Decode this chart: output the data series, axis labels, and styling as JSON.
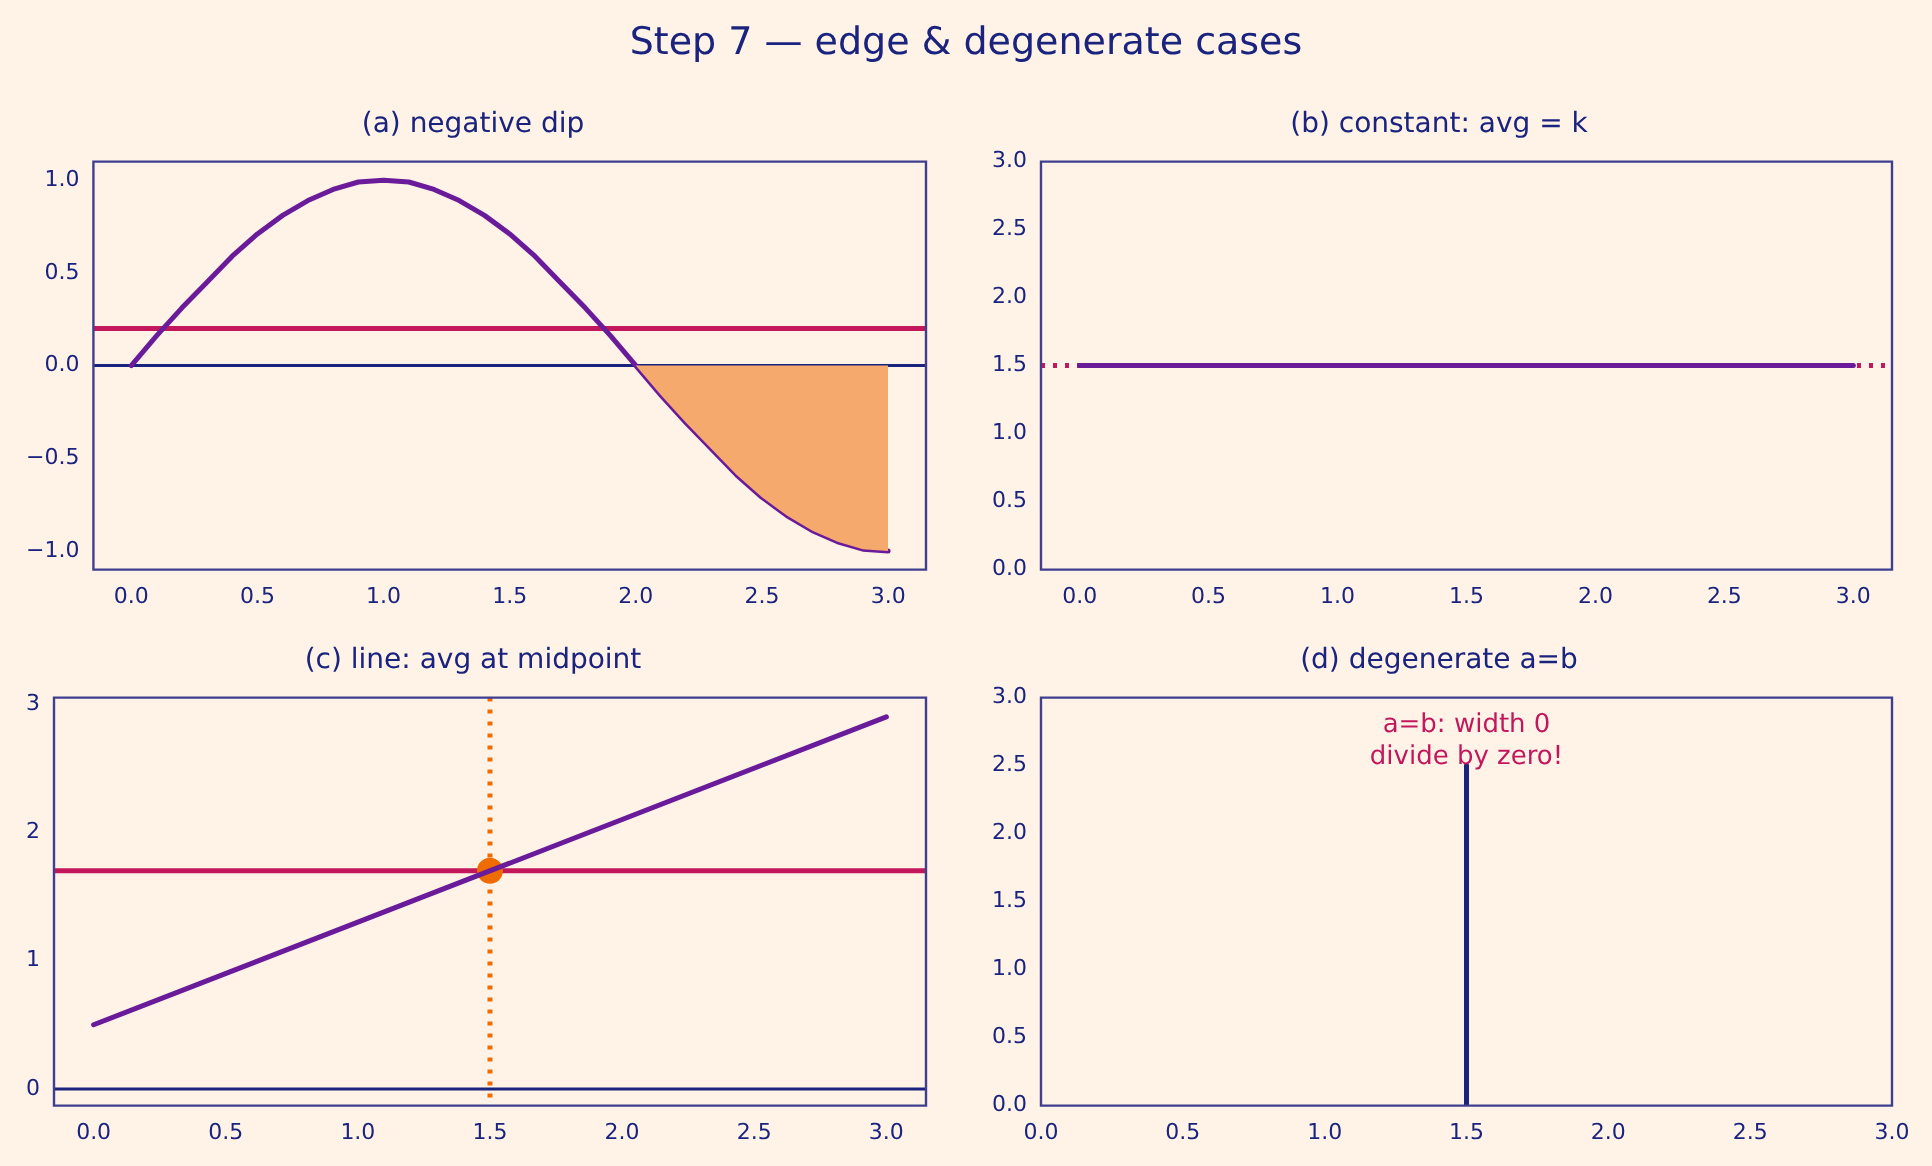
{
  "chart_data": [
    {
      "type": "line",
      "title": "(a) negative dip",
      "annotations": [
        "Step 7 — edge & degenerate cases"
      ],
      "grid": false,
      "legend": false,
      "xlim": [
        -0.15,
        3.15
      ],
      "xticks": [
        {
          "value": 0,
          "label": "0.0"
        },
        0.5,
        {
          "value": 1,
          "label": "1.0"
        },
        1.5,
        {
          "value": 2,
          "label": "2.0"
        },
        2.5,
        {
          "value": 3,
          "label": "3.0"
        }
      ],
      "ylim": [
        -1.1,
        1.1
      ],
      "yticks": [
        {
          "value": -1,
          "label": "−1.0"
        },
        {
          "value": -0.5,
          "label": "−0.5"
        },
        {
          "value": 0,
          "label": "0.0"
        },
        0.5,
        {
          "value": 1,
          "label": "1.0"
        }
      ],
      "series": [
        {
          "type": "area",
          "color": "#f5a96c",
          "x": [
            2,
            2.1,
            2.2,
            2.3,
            2.4,
            2.5,
            2.6,
            2.7,
            2.8,
            2.9,
            3
          ],
          "values": [
            0,
            -0.16,
            -0.31,
            -0.45,
            -0.59,
            -0.71,
            -0.81,
            -0.89,
            -0.95,
            -0.99,
            -1
          ]
        },
        {
          "type": "line",
          "color": "#6a1b9a",
          "x": [
            0,
            0.1,
            0.2,
            0.3,
            0.4,
            0.5,
            0.6,
            0.7,
            0.8,
            0.9,
            1,
            1.1,
            1.2,
            1.3,
            1.4,
            1.5,
            1.6,
            1.7,
            1.8,
            1.9,
            2,
            2.1,
            2.2,
            2.3,
            2.4,
            2.5,
            2.6,
            2.7,
            2.8,
            2.9,
            3
          ],
          "values": [
            0,
            0.16,
            0.31,
            0.45,
            0.59,
            0.71,
            0.81,
            0.89,
            0.95,
            0.99,
            1,
            0.99,
            0.95,
            0.89,
            0.81,
            0.71,
            0.59,
            0.45,
            0.31,
            0.16,
            0,
            -0.16,
            -0.31,
            -0.45,
            -0.59,
            -0.71,
            -0.81,
            -0.89,
            -0.95,
            -0.99,
            -1
          ]
        }
      ],
      "ref_lines": [
        {
          "axis": "y",
          "value": 0,
          "color": "#1a237e",
          "line_style": "solid"
        },
        {
          "axis": "y",
          "value": 0.2,
          "color": "#c2185b",
          "line_style": "solid"
        }
      ]
    },
    {
      "type": "line",
      "title": "(b) constant: avg = k",
      "grid": false,
      "legend": false,
      "xlim": [
        -0.15,
        3.15
      ],
      "xticks": [
        {
          "value": 0,
          "label": "0.0"
        },
        0.5,
        {
          "value": 1,
          "label": "1.0"
        },
        1.5,
        {
          "value": 2,
          "label": "2.0"
        },
        2.5,
        {
          "value": 3,
          "label": "3.0"
        }
      ],
      "ylim": [
        0,
        3
      ],
      "yticks": [
        {
          "value": 0,
          "label": "0.0"
        },
        0.5,
        {
          "value": 1,
          "label": "1.0"
        },
        1.5,
        {
          "value": 2,
          "label": "2.0"
        },
        2.5,
        {
          "value": 3,
          "label": "3.0"
        }
      ],
      "series": [
        {
          "type": "line",
          "color": "#6a1b9a",
          "x": [
            0,
            3
          ],
          "values": [
            1.5,
            1.5
          ]
        }
      ],
      "ref_lines": [
        {
          "axis": "y",
          "value": 1.5,
          "color": "#c2185b",
          "line_style": "dotted"
        }
      ]
    },
    {
      "type": "line",
      "title": "(c) line: avg at midpoint",
      "grid": false,
      "legend": false,
      "xlim": [
        -0.15,
        3.15
      ],
      "xticks": [
        {
          "value": 0,
          "label": "0.0"
        },
        0.5,
        {
          "value": 1,
          "label": "1.0"
        },
        1.5,
        {
          "value": 2,
          "label": "2.0"
        },
        2.5,
        {
          "value": 3,
          "label": "3.0"
        }
      ],
      "ylim": [
        -0.13,
        3.05
      ],
      "yticks": [
        0,
        1,
        2,
        3
      ],
      "series": [
        {
          "type": "line",
          "color": "#6a1b9a",
          "x": [
            0,
            3
          ],
          "values": [
            0.5,
            2.9
          ]
        },
        {
          "type": "scatter",
          "color": "#ef6c00",
          "x": [
            1.5
          ],
          "values": [
            1.7
          ]
        }
      ],
      "ref_lines": [
        {
          "axis": "y",
          "value": 0,
          "color": "#1a237e",
          "line_style": "solid"
        },
        {
          "axis": "y",
          "value": 1.7,
          "color": "#c2185b",
          "line_style": "solid"
        },
        {
          "axis": "x",
          "value": 1.5,
          "color": "#ef6c00",
          "line_style": "dotted"
        }
      ]
    },
    {
      "type": "line",
      "title": "(d) degenerate a=b",
      "grid": false,
      "legend": false,
      "xlim": [
        0,
        3
      ],
      "xticks": [
        {
          "value": 0,
          "label": "0.0"
        },
        0.5,
        {
          "value": 1,
          "label": "1.0"
        },
        1.5,
        {
          "value": 2,
          "label": "2.0"
        },
        2.5,
        {
          "value": 3,
          "label": "3.0"
        }
      ],
      "ylim": [
        0,
        3
      ],
      "yticks": [
        {
          "value": 0,
          "label": "0.0"
        },
        0.5,
        {
          "value": 1,
          "label": "1.0"
        },
        1.5,
        {
          "value": 2,
          "label": "2.0"
        },
        2.5,
        {
          "value": 3,
          "label": "3.0"
        }
      ],
      "series": [
        {
          "type": "line",
          "color": "#1a237e",
          "x": [
            1.5,
            1.5
          ],
          "values": [
            0,
            2.5
          ]
        }
      ],
      "annotations": [
        "a=b: width 0\ndivide by zero!"
      ]
    }
  ]
}
